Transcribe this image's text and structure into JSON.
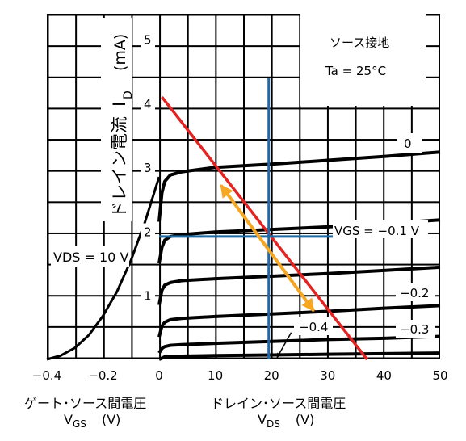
{
  "chart_data": [
    {
      "type": "line",
      "xlabel_main": "ゲート･ソース間電圧",
      "xlabel_sub": "V",
      "xlabel_sub_suffix": "GS",
      "xlabel_unit": "(V)",
      "xlim": [
        -0.4,
        0
      ],
      "x_ticks": [
        "−0.4",
        "−0.2"
      ],
      "series": [
        {
          "name": "VDS = 10 V",
          "x": [
            -0.4,
            -0.35,
            -0.3,
            -0.25,
            -0.2,
            -0.15,
            -0.1,
            -0.05,
            0
          ],
          "y": [
            0,
            0.06,
            0.18,
            0.38,
            0.68,
            1.06,
            1.55,
            2.15,
            2.85
          ]
        }
      ]
    },
    {
      "type": "line",
      "xlabel_main": "ドレイン･ソース間電圧",
      "xlabel_sub": "V",
      "xlabel_sub_suffix": "DS",
      "xlabel_unit": "(V)",
      "ylabel_main": "ドレイン電流",
      "ylabel_sub": "I",
      "ylabel_sub_suffix": "D",
      "ylabel_unit": "(mA)",
      "xlim": [
        0,
        50
      ],
      "ylim": [
        0,
        5.4
      ],
      "x_ticks": [
        "0",
        "10",
        "20",
        "30",
        "40",
        "50"
      ],
      "y_ticks": [
        "1",
        "2",
        "3",
        "4",
        "5"
      ],
      "conditions": [
        "ソース接地",
        "Ta = 25°C"
      ],
      "curve_labels": [
        "0",
        "VGS = −0.1 V",
        "−0.2",
        "−0.3",
        "−0.4"
      ],
      "series": [
        {
          "name": "0",
          "x": [
            0,
            0.5,
            1,
            2,
            4,
            10,
            20,
            30,
            40,
            50
          ],
          "y": [
            2.15,
            2.6,
            2.78,
            2.88,
            2.93,
            3.0,
            3.05,
            3.11,
            3.17,
            3.24
          ]
        },
        {
          "name": "−0.1",
          "x": [
            0,
            0.5,
            1,
            2,
            4,
            10,
            20,
            30,
            40,
            50
          ],
          "y": [
            1.5,
            1.75,
            1.86,
            1.92,
            1.95,
            1.99,
            2.03,
            2.07,
            2.12,
            2.18
          ]
        },
        {
          "name": "−0.2",
          "x": [
            0,
            0.5,
            1,
            2,
            4,
            10,
            20,
            30,
            40,
            50
          ],
          "y": [
            0.85,
            1.08,
            1.16,
            1.2,
            1.23,
            1.26,
            1.3,
            1.34,
            1.39,
            1.44
          ]
        },
        {
          "name": "−0.3",
          "x": [
            0,
            0.5,
            1,
            2,
            4,
            10,
            20,
            30,
            40,
            50
          ],
          "y": [
            0.35,
            0.52,
            0.58,
            0.62,
            0.64,
            0.67,
            0.71,
            0.75,
            0.8,
            0.84
          ]
        },
        {
          "name": "−0.4",
          "x": [
            0,
            0.5,
            1,
            2,
            4,
            10,
            20,
            30,
            40,
            50
          ],
          "y": [
            0.1,
            0.17,
            0.2,
            0.22,
            0.23,
            0.25,
            0.28,
            0.31,
            0.33,
            0.36
          ]
        },
        {
          "name": "",
          "x": [
            0,
            1,
            4,
            10,
            20,
            30,
            40,
            50
          ],
          "y": [
            0.0,
            0.04,
            0.05,
            0.06,
            0.07,
            0.08,
            0.09,
            0.1
          ]
        }
      ],
      "overlays": [
        {
          "kind": "load-line",
          "color": "#e32322",
          "x": [
            0.5,
            37
          ],
          "y": [
            4.1,
            0
          ]
        },
        {
          "kind": "vertical",
          "color": "#1f6aa5",
          "x": [
            19.5,
            19.5
          ],
          "y": [
            0,
            4.4
          ]
        },
        {
          "kind": "horizontal",
          "color": "#1f6aa5",
          "x": [
            0,
            47
          ],
          "y": [
            1.92,
            1.92
          ]
        },
        {
          "kind": "double-arrow",
          "color": "#f5a623",
          "x": [
            11,
            27.5
          ],
          "y": [
            2.72,
            0.76
          ]
        },
        {
          "kind": "annotation-arrow",
          "color": "#000000",
          "x": [
            23.5,
            21
          ],
          "y": [
            0.42,
            0.03
          ]
        }
      ]
    }
  ]
}
